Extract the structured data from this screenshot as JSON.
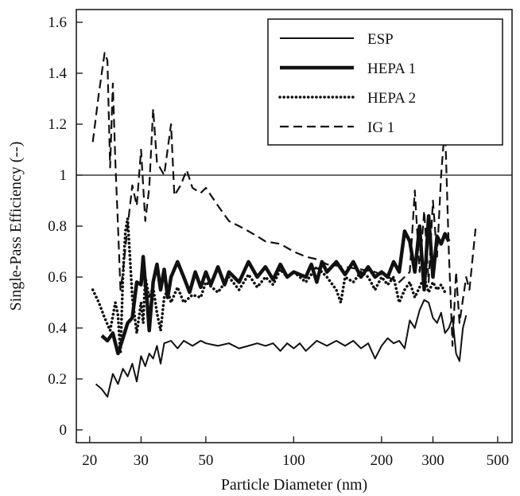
{
  "chart_data": {
    "type": "line",
    "xlabel": "Particle Diameter (nm)",
    "ylabel": "Single-Pass Efficiency (--)",
    "x_scale": "log",
    "xlim": [
      18,
      560
    ],
    "ylim": [
      -0.05,
      1.65
    ],
    "x_ticks": [
      20,
      30,
      50,
      100,
      200,
      300,
      500
    ],
    "x_tick_labels": [
      "20",
      "30",
      "50",
      "100",
      "200",
      "300",
      "500"
    ],
    "y_ticks": [
      0,
      0.2,
      0.4,
      0.6,
      0.8,
      1,
      1.2,
      1.4,
      1.6
    ],
    "y_tick_labels": [
      "0",
      "0.2",
      "0.4",
      "0.6",
      "0.8",
      "1",
      "1.2",
      "1.4",
      "1.6"
    ],
    "reference_line": 1,
    "grid": false,
    "legend_position": "top-right",
    "series": [
      {
        "name": "ESP",
        "style": "solid-thin",
        "color": "#111111",
        "points": [
          [
            21,
            0.18
          ],
          [
            22,
            0.16
          ],
          [
            23,
            0.13
          ],
          [
            24,
            0.22
          ],
          [
            25,
            0.18
          ],
          [
            26,
            0.24
          ],
          [
            27,
            0.21
          ],
          [
            28,
            0.26
          ],
          [
            29,
            0.19
          ],
          [
            30,
            0.29
          ],
          [
            31,
            0.25
          ],
          [
            32,
            0.3
          ],
          [
            33,
            0.28
          ],
          [
            34,
            0.33
          ],
          [
            35,
            0.26
          ],
          [
            36,
            0.34
          ],
          [
            38,
            0.35
          ],
          [
            40,
            0.32
          ],
          [
            42,
            0.35
          ],
          [
            45,
            0.33
          ],
          [
            48,
            0.35
          ],
          [
            50,
            0.34
          ],
          [
            55,
            0.33
          ],
          [
            60,
            0.34
          ],
          [
            65,
            0.32
          ],
          [
            70,
            0.33
          ],
          [
            75,
            0.34
          ],
          [
            80,
            0.33
          ],
          [
            85,
            0.34
          ],
          [
            90,
            0.31
          ],
          [
            95,
            0.34
          ],
          [
            100,
            0.32
          ],
          [
            105,
            0.34
          ],
          [
            110,
            0.31
          ],
          [
            120,
            0.35
          ],
          [
            130,
            0.33
          ],
          [
            140,
            0.35
          ],
          [
            150,
            0.33
          ],
          [
            160,
            0.35
          ],
          [
            170,
            0.32
          ],
          [
            180,
            0.34
          ],
          [
            190,
            0.28
          ],
          [
            200,
            0.33
          ],
          [
            210,
            0.36
          ],
          [
            220,
            0.34
          ],
          [
            230,
            0.35
          ],
          [
            240,
            0.32
          ],
          [
            250,
            0.43
          ],
          [
            260,
            0.4
          ],
          [
            270,
            0.47
          ],
          [
            280,
            0.51
          ],
          [
            290,
            0.5
          ],
          [
            300,
            0.44
          ],
          [
            310,
            0.42
          ],
          [
            320,
            0.46
          ],
          [
            330,
            0.38
          ],
          [
            340,
            0.4
          ],
          [
            350,
            0.44
          ],
          [
            360,
            0.3
          ],
          [
            370,
            0.27
          ],
          [
            380,
            0.4
          ],
          [
            390,
            0.45
          ]
        ]
      },
      {
        "name": "HEPA 1",
        "style": "solid-thick",
        "color": "#111111",
        "points": [
          [
            22,
            0.37
          ],
          [
            23,
            0.35
          ],
          [
            24,
            0.38
          ],
          [
            25,
            0.3
          ],
          [
            26,
            0.36
          ],
          [
            27,
            0.42
          ],
          [
            28,
            0.44
          ],
          [
            29,
            0.58
          ],
          [
            30,
            0.57
          ],
          [
            30.5,
            0.68
          ],
          [
            31,
            0.58
          ],
          [
            31.5,
            0.5
          ],
          [
            32,
            0.39
          ],
          [
            33,
            0.58
          ],
          [
            34,
            0.65
          ],
          [
            35,
            0.55
          ],
          [
            36,
            0.63
          ],
          [
            37,
            0.52
          ],
          [
            38,
            0.6
          ],
          [
            40,
            0.66
          ],
          [
            42,
            0.6
          ],
          [
            44,
            0.54
          ],
          [
            46,
            0.62
          ],
          [
            48,
            0.56
          ],
          [
            50,
            0.62
          ],
          [
            52,
            0.57
          ],
          [
            55,
            0.64
          ],
          [
            58,
            0.57
          ],
          [
            60,
            0.62
          ],
          [
            65,
            0.58
          ],
          [
            70,
            0.66
          ],
          [
            75,
            0.6
          ],
          [
            80,
            0.64
          ],
          [
            85,
            0.59
          ],
          [
            90,
            0.65
          ],
          [
            95,
            0.6
          ],
          [
            100,
            0.62
          ],
          [
            110,
            0.6
          ],
          [
            115,
            0.65
          ],
          [
            120,
            0.58
          ],
          [
            125,
            0.66
          ],
          [
            130,
            0.62
          ],
          [
            140,
            0.66
          ],
          [
            150,
            0.61
          ],
          [
            160,
            0.66
          ],
          [
            170,
            0.6
          ],
          [
            180,
            0.64
          ],
          [
            190,
            0.6
          ],
          [
            200,
            0.62
          ],
          [
            210,
            0.6
          ],
          [
            220,
            0.66
          ],
          [
            230,
            0.62
          ],
          [
            240,
            0.78
          ],
          [
            250,
            0.74
          ],
          [
            260,
            0.62
          ],
          [
            270,
            0.8
          ],
          [
            280,
            0.55
          ],
          [
            290,
            0.84
          ],
          [
            300,
            0.6
          ],
          [
            310,
            0.76
          ],
          [
            320,
            0.73
          ],
          [
            330,
            0.77
          ],
          [
            340,
            0.74
          ]
        ]
      },
      {
        "name": "HEPA 2",
        "style": "dotted",
        "color": "#111111",
        "points": [
          [
            20.5,
            0.55
          ],
          [
            21.5,
            0.5
          ],
          [
            22.5,
            0.44
          ],
          [
            23.5,
            0.39
          ],
          [
            24.5,
            0.5
          ],
          [
            25,
            0.45
          ],
          [
            25.5,
            0.3
          ],
          [
            26,
            0.6
          ],
          [
            26.5,
            0.78
          ],
          [
            27,
            0.83
          ],
          [
            28,
            0.52
          ],
          [
            29,
            0.38
          ],
          [
            30,
            0.5
          ],
          [
            30.5,
            0.42
          ],
          [
            31,
            0.6
          ],
          [
            32,
            0.52
          ],
          [
            33,
            0.56
          ],
          [
            34,
            0.46
          ],
          [
            35,
            0.39
          ],
          [
            36,
            0.52
          ],
          [
            37,
            0.55
          ],
          [
            38,
            0.5
          ],
          [
            40,
            0.56
          ],
          [
            42,
            0.5
          ],
          [
            45,
            0.53
          ],
          [
            48,
            0.52
          ],
          [
            50,
            0.58
          ],
          [
            55,
            0.54
          ],
          [
            60,
            0.6
          ],
          [
            65,
            0.55
          ],
          [
            70,
            0.61
          ],
          [
            75,
            0.56
          ],
          [
            80,
            0.6
          ],
          [
            85,
            0.57
          ],
          [
            90,
            0.63
          ],
          [
            95,
            0.6
          ],
          [
            100,
            0.62
          ],
          [
            110,
            0.58
          ],
          [
            120,
            0.64
          ],
          [
            130,
            0.6
          ],
          [
            140,
            0.55
          ],
          [
            145,
            0.5
          ],
          [
            150,
            0.6
          ],
          [
            160,
            0.58
          ],
          [
            170,
            0.62
          ],
          [
            180,
            0.6
          ],
          [
            190,
            0.55
          ],
          [
            200,
            0.6
          ],
          [
            210,
            0.57
          ],
          [
            220,
            0.6
          ],
          [
            230,
            0.5
          ],
          [
            240,
            0.55
          ],
          [
            250,
            0.58
          ],
          [
            260,
            0.52
          ],
          [
            270,
            0.56
          ],
          [
            280,
            0.6
          ],
          [
            290,
            0.54
          ],
          [
            300,
            0.58
          ],
          [
            310,
            0.55
          ],
          [
            320,
            0.57
          ],
          [
            330,
            0.54
          ]
        ]
      },
      {
        "name": "IG 1",
        "style": "dashed",
        "color": "#111111",
        "points": [
          [
            20.5,
            1.13
          ],
          [
            21.5,
            1.32
          ],
          [
            22.5,
            1.48
          ],
          [
            23,
            1.45
          ],
          [
            23.5,
            1.03
          ],
          [
            24,
            1.36
          ],
          [
            24.5,
            1.05
          ],
          [
            25,
            0.8
          ],
          [
            25.5,
            0.55
          ],
          [
            26,
            0.62
          ],
          [
            27,
            0.8
          ],
          [
            28,
            0.96
          ],
          [
            29,
            0.88
          ],
          [
            30,
            1.1
          ],
          [
            31,
            0.82
          ],
          [
            32,
            0.95
          ],
          [
            33,
            1.26
          ],
          [
            34,
            1.05
          ],
          [
            36,
            1.0
          ],
          [
            38,
            1.2
          ],
          [
            39,
            0.92
          ],
          [
            41,
            0.96
          ],
          [
            43,
            1.02
          ],
          [
            45,
            0.95
          ],
          [
            48,
            0.93
          ],
          [
            50,
            0.95
          ],
          [
            55,
            0.88
          ],
          [
            60,
            0.82
          ],
          [
            65,
            0.8
          ],
          [
            70,
            0.78
          ],
          [
            75,
            0.76
          ],
          [
            80,
            0.74
          ],
          [
            90,
            0.73
          ],
          [
            100,
            0.7
          ],
          [
            110,
            0.68
          ],
          [
            120,
            0.67
          ],
          [
            130,
            0.65
          ],
          [
            150,
            0.64
          ],
          [
            170,
            0.63
          ],
          [
            190,
            0.62
          ],
          [
            210,
            0.6
          ],
          [
            230,
            0.58
          ],
          [
            250,
            0.62
          ],
          [
            260,
            0.94
          ],
          [
            270,
            0.62
          ],
          [
            280,
            0.86
          ],
          [
            290,
            0.58
          ],
          [
            300,
            0.9
          ],
          [
            310,
            0.68
          ],
          [
            320,
            1.0
          ],
          [
            330,
            1.2
          ],
          [
            340,
            0.7
          ],
          [
            350,
            0.33
          ],
          [
            360,
            0.62
          ],
          [
            370,
            0.42
          ],
          [
            390,
            0.6
          ],
          [
            400,
            0.55
          ],
          [
            420,
            0.79
          ]
        ]
      }
    ]
  },
  "legend_swatch_color": "#111111"
}
